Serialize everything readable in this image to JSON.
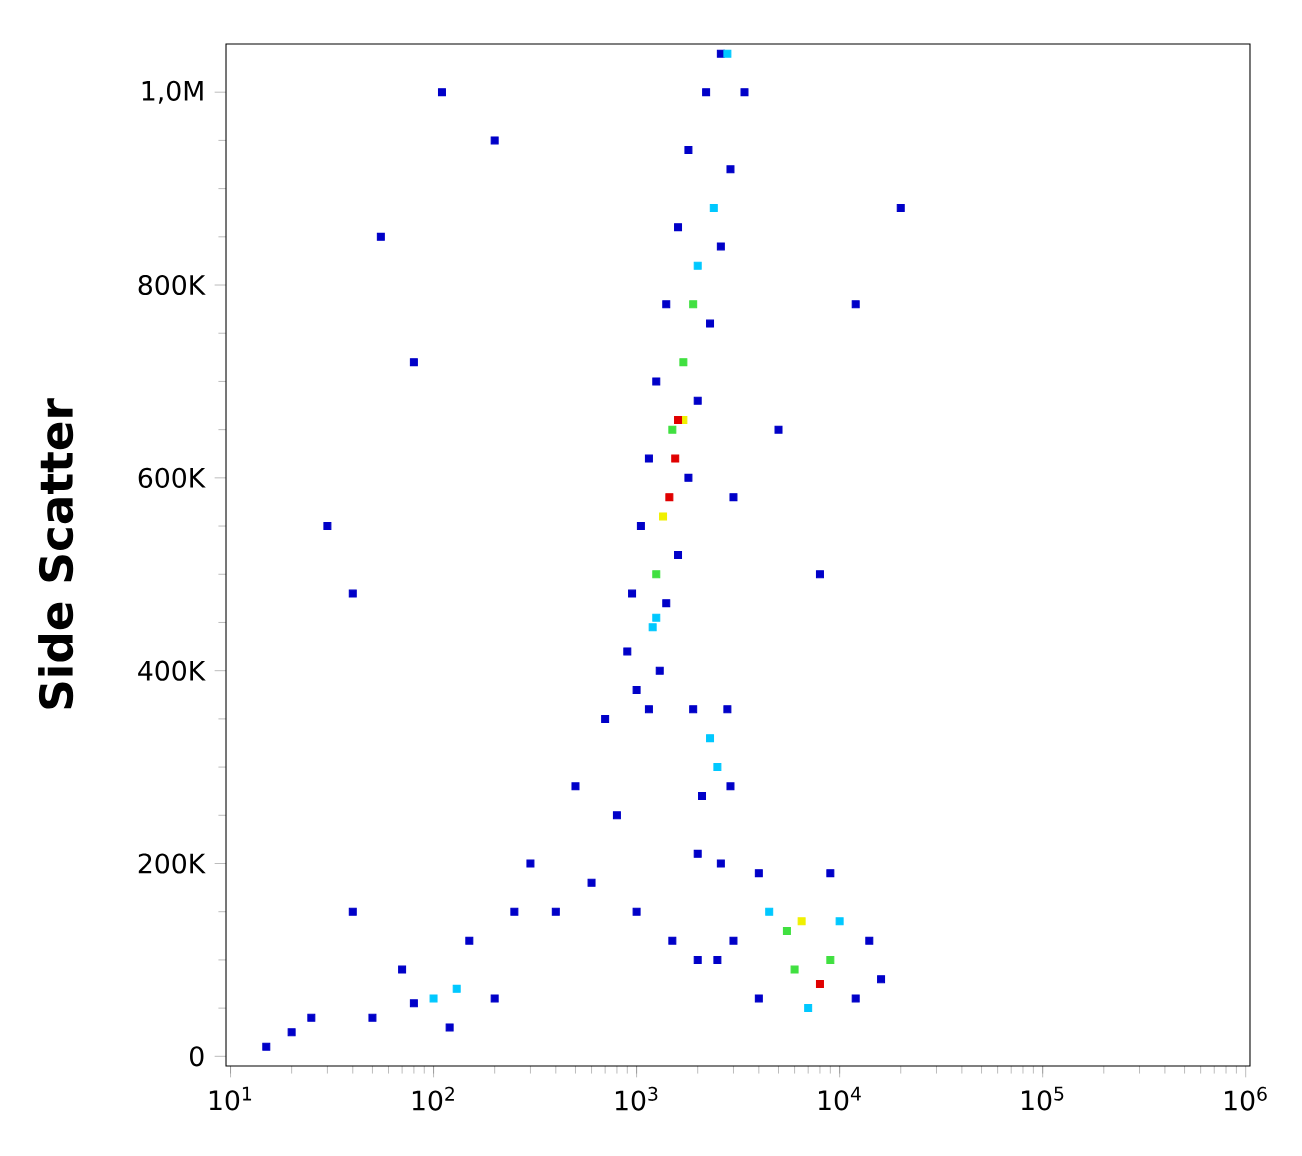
{
  "chart_data": {
    "type": "scatter",
    "ylabel": "Side Scatter",
    "log": "x",
    "marker": "square",
    "xlim": [
      9.5,
      1050000
    ],
    "ylim": [
      -10000,
      1050000
    ],
    "xticks": [
      {
        "value": 10,
        "label": "10$^{1}$"
      },
      {
        "value": 100,
        "label": "10$^{2}$"
      },
      {
        "value": 1000,
        "label": "10$^{3}$"
      },
      {
        "value": 10000,
        "label": "10$^{4}$"
      },
      {
        "value": 100000,
        "label": "10$^{5}$"
      },
      {
        "value": 1000000,
        "label": "10$^{6}$"
      }
    ],
    "yticks": [
      0,
      {
        "value": 200000,
        "label": "200K"
      },
      {
        "value": 400000,
        "label": "400K"
      },
      {
        "value": 600000,
        "label": "600K"
      },
      {
        "value": 800000,
        "label": "800K"
      },
      {
        "value": 1000000,
        "label": "1,0M"
      }
    ],
    "x": [
      1000,
      1150,
      900,
      1300,
      950,
      1400,
      1050,
      1600,
      1150,
      1800,
      1250,
      2000,
      1400,
      2300,
      1600,
      2600,
      1800,
      2900,
      2200,
      3400,
      2600,
      1200,
      1250,
      2400,
      2000,
      2800,
      1250,
      1700,
      1500,
      1900,
      1350,
      1700,
      1450,
      1550,
      1600,
      2300,
      2500,
      1900,
      2800,
      2100,
      2900,
      2000,
      2600,
      3000,
      4000,
      9000,
      14000,
      12000,
      4000,
      2500,
      16000,
      4500,
      10000,
      7000,
      5500,
      9000,
      6000,
      6500,
      8000,
      50,
      70,
      150,
      200,
      120,
      250,
      80,
      100,
      130,
      300,
      500,
      700,
      400,
      800,
      600,
      1000,
      1500,
      2000,
      20,
      30,
      40,
      55,
      80,
      110,
      200,
      25,
      15,
      5000,
      8000,
      20000,
      12000,
      3000,
      40
    ],
    "values": [
      380000,
      360000,
      420000,
      400000,
      480000,
      470000,
      550000,
      520000,
      620000,
      600000,
      700000,
      680000,
      780000,
      760000,
      860000,
      840000,
      940000,
      920000,
      1000000,
      1000000,
      1040000,
      445000,
      455000,
      880000,
      820000,
      1040000,
      500000,
      720000,
      650000,
      780000,
      560000,
      660000,
      580000,
      620000,
      660000,
      330000,
      300000,
      360000,
      360000,
      270000,
      280000,
      210000,
      200000,
      120000,
      190000,
      190000,
      120000,
      60000,
      60000,
      100000,
      80000,
      150000,
      140000,
      50000,
      130000,
      100000,
      90000,
      140000,
      75000,
      40000,
      90000,
      120000,
      60000,
      30000,
      150000,
      55000,
      60000,
      70000,
      200000,
      280000,
      350000,
      150000,
      250000,
      180000,
      150000,
      120000,
      100000,
      25000,
      550000,
      480000,
      850000,
      720000,
      1000000,
      950000,
      40000,
      10000,
      650000,
      500000,
      880000,
      780000,
      580000,
      150000
    ],
    "colors": [
      "#0000c8",
      "#0000c8",
      "#0000c8",
      "#0000c8",
      "#0000c8",
      "#0000c8",
      "#0000c8",
      "#0000c8",
      "#0000c8",
      "#0000c8",
      "#0000c8",
      "#0000c8",
      "#0000c8",
      "#0000c8",
      "#0000c8",
      "#0000c8",
      "#0000c8",
      "#0000c8",
      "#0000c8",
      "#0000c8",
      "#0000c8",
      "#00c8ff",
      "#00c8ff",
      "#00c8ff",
      "#00c8ff",
      "#00c8ff",
      "#40e040",
      "#40e040",
      "#40e040",
      "#40e040",
      "#f0f000",
      "#f0f000",
      "#e00000",
      "#e00000",
      "#e00000",
      "#00c8ff",
      "#00c8ff",
      "#0000c8",
      "#0000c8",
      "#0000c8",
      "#0000c8",
      "#0000c8",
      "#0000c8",
      "#0000c8",
      "#0000c8",
      "#0000c8",
      "#0000c8",
      "#0000c8",
      "#0000c8",
      "#0000c8",
      "#0000c8",
      "#00c8ff",
      "#00c8ff",
      "#00c8ff",
      "#40e040",
      "#40e040",
      "#40e040",
      "#f0f000",
      "#e00000",
      "#0000c8",
      "#0000c8",
      "#0000c8",
      "#0000c8",
      "#0000c8",
      "#0000c8",
      "#0000c8",
      "#00c8ff",
      "#00c8ff",
      "#0000c8",
      "#0000c8",
      "#0000c8",
      "#0000c8",
      "#0000c8",
      "#0000c8",
      "#0000c8",
      "#0000c8",
      "#0000c8",
      "#0000c8",
      "#0000c8",
      "#0000c8",
      "#0000c8",
      "#0000c8",
      "#0000c8",
      "#0000c8",
      "#0000c8",
      "#0000c8",
      "#0000c8",
      "#0000c8",
      "#0000c8",
      "#0000c8",
      "#0000c8",
      "#0000c8"
    ]
  }
}
